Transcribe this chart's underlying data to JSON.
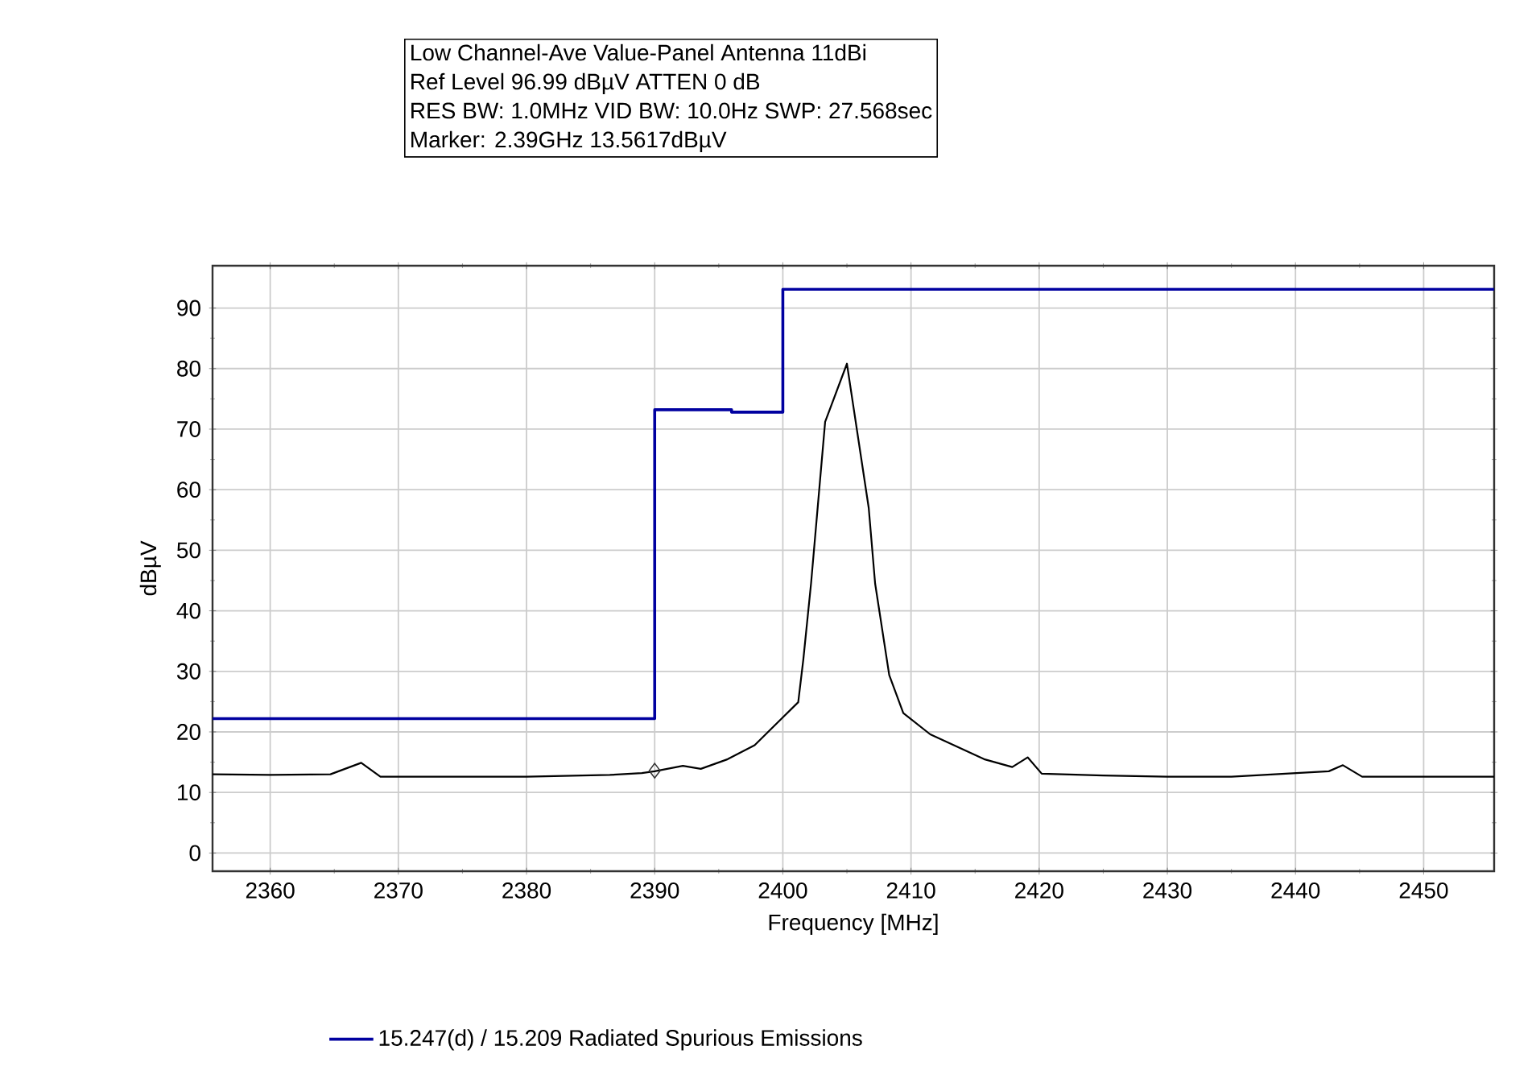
{
  "chart_data": {
    "type": "line",
    "annotations": [
      "Low Channel-Ave Value-Panel Antenna 11dBi",
      "Ref Level 96.99 dBµV    ATTEN 0 dB",
      "RES BW: 1.0MHz  VID BW: 10.0Hz  SWP: 27.568sec",
      "Marker: 2.39GHz  13.5617dBµV"
    ],
    "xlabel": "Frequency [MHz]",
    "ylabel": "dBµV",
    "xlim": [
      2355.5,
      2455.5
    ],
    "ylim": [
      -3,
      96.99
    ],
    "xticks": [
      2360,
      2370,
      2380,
      2390,
      2400,
      2410,
      2420,
      2430,
      2440,
      2450
    ],
    "yticks": [
      0,
      10,
      20,
      30,
      40,
      50,
      60,
      70,
      80,
      90
    ],
    "grid": true,
    "legend": "bottom",
    "series": [
      {
        "name": "15.247(d) / 15.209 Radiated Spurious Emissions",
        "type": "step",
        "color": "#0000a0",
        "x": [
          2355.5,
          2390,
          2396,
          2400,
          2455.5
        ],
        "values": [
          22.2,
          73.2,
          72.8,
          93.1,
          93.1
        ]
      },
      {
        "type": "scatter",
        "marker": "diamond",
        "color": "#333333",
        "x": [
          2390
        ],
        "values": [
          13.6
        ]
      },
      {
        "color": "#000000",
        "x": [
          2355.5,
          2360,
          2364.7,
          2367.1,
          2368.6,
          2375,
          2380,
          2386.5,
          2389,
          2390,
          2392.2,
          2393.6,
          2395.7,
          2397.8,
          2399.9,
          2401.2,
          2401.6,
          2402.2,
          2403.3,
          2405,
          2406.7,
          2407.2,
          2408.3,
          2409.4,
          2411.5,
          2415.7,
          2417.9,
          2419.1,
          2420.2,
          2425,
          2430,
          2435,
          2442.6,
          2443.7,
          2445.2,
          2450,
          2455.5
        ],
        "values": [
          13.0,
          12.9,
          13.0,
          14.9,
          12.6,
          12.6,
          12.6,
          12.9,
          13.2,
          13.5,
          14.4,
          13.9,
          15.5,
          17.8,
          22.2,
          24.9,
          32,
          44.5,
          71.2,
          80.8,
          57,
          44.5,
          29.4,
          23.1,
          19.6,
          15.5,
          14.2,
          15.8,
          13.1,
          12.8,
          12.6,
          12.6,
          13.5,
          14.5,
          12.6,
          12.6,
          12.6
        ]
      }
    ]
  }
}
